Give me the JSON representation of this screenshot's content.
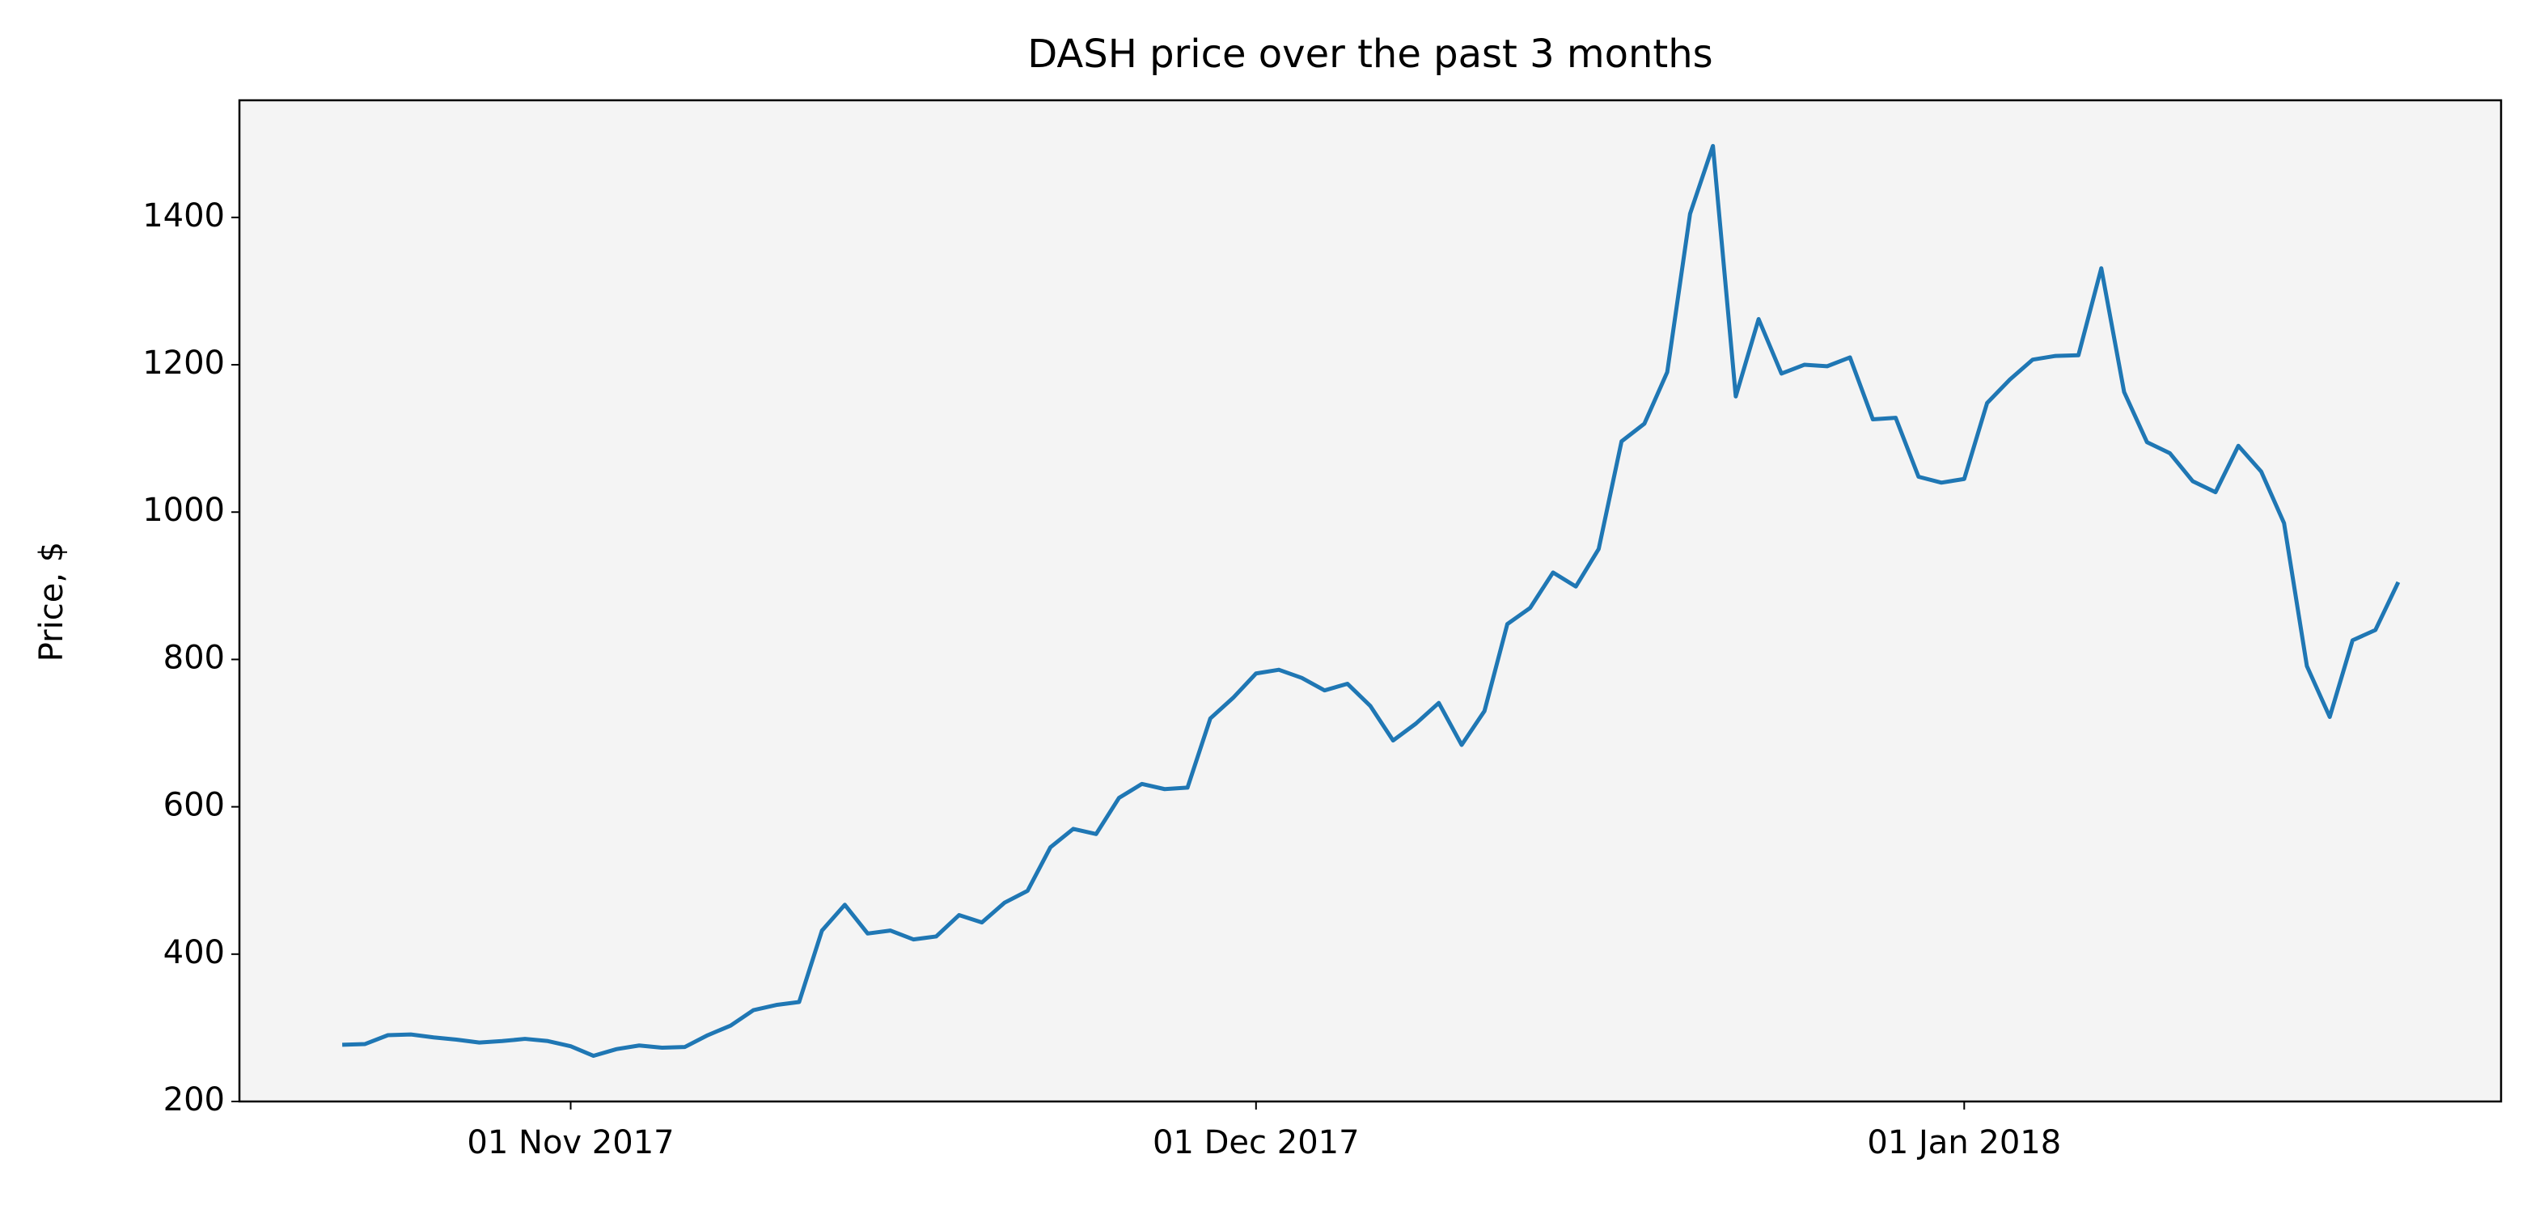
{
  "chart_data": {
    "type": "line",
    "title": "DASH price over the past 3 months",
    "y_label": "Price, $",
    "color": "#1f77b4",
    "background": "#f4f4f4",
    "grid": false,
    "x": [
      "2017-10-22",
      "2017-10-23",
      "2017-10-24",
      "2017-10-25",
      "2017-10-26",
      "2017-10-27",
      "2017-10-28",
      "2017-10-29",
      "2017-10-30",
      "2017-10-31",
      "2017-11-01",
      "2017-11-02",
      "2017-11-03",
      "2017-11-04",
      "2017-11-05",
      "2017-11-06",
      "2017-11-07",
      "2017-11-08",
      "2017-11-09",
      "2017-11-10",
      "2017-11-11",
      "2017-11-12",
      "2017-11-13",
      "2017-11-14",
      "2017-11-15",
      "2017-11-16",
      "2017-11-17",
      "2017-11-18",
      "2017-11-19",
      "2017-11-20",
      "2017-11-21",
      "2017-11-22",
      "2017-11-23",
      "2017-11-24",
      "2017-11-25",
      "2017-11-26",
      "2017-11-27",
      "2017-11-28",
      "2017-11-29",
      "2017-11-30",
      "2017-12-01",
      "2017-12-02",
      "2017-12-03",
      "2017-12-04",
      "2017-12-05",
      "2017-12-06",
      "2017-12-07",
      "2017-12-08",
      "2017-12-09",
      "2017-12-10",
      "2017-12-11",
      "2017-12-12",
      "2017-12-13",
      "2017-12-14",
      "2017-12-15",
      "2017-12-16",
      "2017-12-17",
      "2017-12-18",
      "2017-12-19",
      "2017-12-20",
      "2017-12-21",
      "2017-12-22",
      "2017-12-23",
      "2017-12-24",
      "2017-12-25",
      "2017-12-26",
      "2017-12-27",
      "2017-12-28",
      "2017-12-29",
      "2017-12-30",
      "2017-12-31",
      "2018-01-01",
      "2018-01-02",
      "2018-01-03",
      "2018-01-04",
      "2018-01-05",
      "2018-01-06",
      "2018-01-07",
      "2018-01-08",
      "2018-01-09",
      "2018-01-10",
      "2018-01-11",
      "2018-01-12",
      "2018-01-13",
      "2018-01-14",
      "2018-01-15",
      "2018-01-16",
      "2018-01-17",
      "2018-01-18",
      "2018-01-19",
      "2018-01-20"
    ],
    "values": [
      277,
      278,
      290,
      291,
      287,
      284,
      280,
      282,
      285,
      282,
      275,
      262,
      271,
      276,
      273,
      274,
      290,
      303,
      324,
      331,
      335,
      432,
      467,
      428,
      432,
      420,
      424,
      453,
      443,
      470,
      486,
      545,
      570,
      563,
      612,
      631,
      624,
      626,
      720,
      748,
      781,
      786,
      775,
      758,
      767,
      737,
      690,
      713,
      741,
      684,
      730,
      848,
      870,
      918,
      899,
      950,
      1096,
      1120,
      1190,
      1405,
      1497,
      1157,
      1262,
      1188,
      1200,
      1198,
      1210,
      1126,
      1128,
      1048,
      1040,
      1045,
      1148,
      1180,
      1207,
      1212,
      1213,
      1331,
      1163,
      1095,
      1080,
      1042,
      1027,
      1090,
      1055,
      985,
      791,
      722,
      826,
      840,
      905
    ],
    "xlim": [
      "2017-10-17 12:00",
      "2018-01-24 12:00"
    ],
    "xticks": [
      {
        "value": "2017-11-01",
        "label": "01 Nov 2017"
      },
      {
        "value": "2017-12-01",
        "label": "01 Dec 2017"
      },
      {
        "value": "2018-01-01",
        "label": "01 Jan 2018"
      }
    ],
    "ylim": [
      200,
      1559
    ],
    "yticks": [
      200,
      400,
      600,
      800,
      1000,
      1200,
      1400
    ]
  }
}
